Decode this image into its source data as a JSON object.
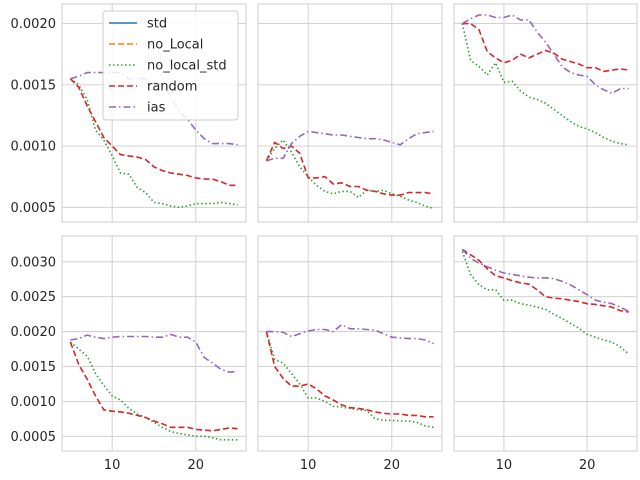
{
  "figure": {
    "layout": "2x3 grid of line charts, shared axes per row"
  },
  "legend": {
    "location": "upper-center of top-left panel",
    "entries": [
      {
        "label": "std",
        "color": "#1f77b4",
        "dash": "solid"
      },
      {
        "label": "no_Local",
        "color": "#ff7f0e",
        "dash": "dashed"
      },
      {
        "label": "no_local_std",
        "color": "#2ca02c",
        "dash": "dotted"
      },
      {
        "label": "random",
        "color": "#d62728",
        "dash": "dashed"
      },
      {
        "label": "ias",
        "color": "#9467bd",
        "dash": "dashdot"
      }
    ]
  },
  "axes": {
    "x": {
      "ticks": [
        10,
        20
      ],
      "tick_labels": [
        "10",
        "20"
      ],
      "range": [
        4.0,
        26.0
      ]
    },
    "rows": [
      {
        "range": [
          0.00038,
          0.00216
        ],
        "ticks": [
          0.0005,
          0.001,
          0.0015,
          0.002
        ],
        "tick_labels": [
          "0.0005",
          "0.0010",
          "0.0015",
          "0.0020"
        ]
      },
      {
        "range": [
          0.00029,
          0.00337
        ],
        "ticks": [
          0.0005,
          0.001,
          0.0015,
          0.002,
          0.0025,
          0.003
        ],
        "tick_labels": [
          "0.0005",
          "0.0010",
          "0.0015",
          "0.0020",
          "0.0025",
          "0.0030"
        ]
      }
    ],
    "grid": true
  },
  "chart_data": [
    {
      "type": "line",
      "row": 0,
      "col": 0,
      "series": [
        {
          "name": "no_local_std",
          "color": "#2ca02c",
          "dash": "dotted",
          "x": [
            5,
            6,
            7,
            8,
            9,
            10,
            11,
            12,
            13,
            14,
            15,
            16,
            17,
            18,
            19,
            20,
            21,
            22,
            23,
            24,
            25
          ],
          "y": [
            0.00155,
            0.0015,
            0.00138,
            0.00113,
            0.00105,
            0.00092,
            0.00078,
            0.00077,
            0.00066,
            0.00062,
            0.00054,
            0.00053,
            0.00051,
            0.0005,
            0.00051,
            0.00053,
            0.00053,
            0.00053,
            0.00054,
            0.00053,
            0.00052
          ]
        },
        {
          "name": "random",
          "color": "#d62728",
          "dash": "dashed",
          "x": [
            5,
            6,
            7,
            8,
            9,
            10,
            11,
            12,
            13,
            14,
            15,
            16,
            17,
            18,
            19,
            20,
            21,
            22,
            23,
            24,
            25
          ],
          "y": [
            0.00155,
            0.00148,
            0.00133,
            0.0012,
            0.00107,
            0.001,
            0.00093,
            0.00092,
            0.00091,
            0.00089,
            0.00083,
            0.0008,
            0.00078,
            0.00077,
            0.00076,
            0.00074,
            0.00073,
            0.00073,
            0.00071,
            0.00068,
            0.00068
          ]
        },
        {
          "name": "ias",
          "color": "#9467bd",
          "dash": "dashdot",
          "x": [
            5,
            6,
            7,
            8,
            9,
            10,
            11,
            12,
            13,
            14,
            15,
            16,
            17,
            18,
            19,
            20,
            21,
            22,
            23,
            24,
            25
          ],
          "y": [
            0.00155,
            0.00157,
            0.0016,
            0.0016,
            0.0016,
            0.0016,
            0.0016,
            0.00155,
            0.00155,
            0.00155,
            0.00152,
            0.0015,
            0.0014,
            0.00128,
            0.00122,
            0.00113,
            0.00106,
            0.00102,
            0.00102,
            0.00102,
            0.00101
          ]
        }
      ]
    },
    {
      "type": "line",
      "row": 0,
      "col": 1,
      "series": [
        {
          "name": "no_local_std",
          "color": "#2ca02c",
          "dash": "dotted",
          "x": [
            5,
            6,
            7,
            8,
            9,
            10,
            11,
            12,
            13,
            14,
            15,
            16,
            17,
            18,
            19,
            20,
            21,
            22,
            23,
            24,
            25
          ],
          "y": [
            0.00088,
            0.00098,
            0.00105,
            0.00095,
            0.00083,
            0.00075,
            0.00068,
            0.00063,
            0.00061,
            0.00063,
            0.00063,
            0.00058,
            0.00064,
            0.00063,
            0.00064,
            0.00061,
            0.00059,
            0.00056,
            0.00054,
            0.00051,
            0.00049
          ]
        },
        {
          "name": "random",
          "color": "#d62728",
          "dash": "dashed",
          "x": [
            5,
            6,
            7,
            8,
            9,
            10,
            11,
            12,
            13,
            14,
            15,
            16,
            17,
            18,
            19,
            20,
            21,
            22,
            23,
            24,
            25
          ],
          "y": [
            0.00088,
            0.00103,
            0.00098,
            0.001,
            0.00094,
            0.00074,
            0.00074,
            0.00075,
            0.00069,
            0.0007,
            0.00067,
            0.00067,
            0.00064,
            0.00063,
            0.00061,
            0.0006,
            0.0006,
            0.00062,
            0.00062,
            0.00062,
            0.00061
          ]
        },
        {
          "name": "ias",
          "color": "#9467bd",
          "dash": "dashdot",
          "x": [
            5,
            6,
            7,
            8,
            9,
            10,
            11,
            12,
            13,
            14,
            15,
            16,
            17,
            18,
            19,
            20,
            21,
            22,
            23,
            24,
            25
          ],
          "y": [
            0.00088,
            0.0009,
            0.0009,
            0.00102,
            0.00108,
            0.00112,
            0.00111,
            0.0011,
            0.00109,
            0.00109,
            0.00108,
            0.00107,
            0.00106,
            0.00106,
            0.00105,
            0.00103,
            0.00101,
            0.00106,
            0.0011,
            0.00111,
            0.00112
          ]
        }
      ]
    },
    {
      "type": "line",
      "row": 0,
      "col": 2,
      "series": [
        {
          "name": "no_local_std",
          "color": "#2ca02c",
          "dash": "dotted",
          "x": [
            5,
            6,
            7,
            8,
            9,
            10,
            11,
            12,
            13,
            14,
            15,
            16,
            17,
            18,
            19,
            20,
            21,
            22,
            23,
            24,
            25
          ],
          "y": [
            0.002,
            0.0017,
            0.00165,
            0.00158,
            0.00168,
            0.00152,
            0.00153,
            0.00145,
            0.0014,
            0.00138,
            0.00135,
            0.0013,
            0.00125,
            0.0012,
            0.00116,
            0.00114,
            0.00111,
            0.00107,
            0.00104,
            0.00102,
            0.00101
          ]
        },
        {
          "name": "random",
          "color": "#d62728",
          "dash": "dashed",
          "x": [
            5,
            6,
            7,
            8,
            9,
            10,
            11,
            12,
            13,
            14,
            15,
            16,
            17,
            18,
            19,
            20,
            21,
            22,
            23,
            24,
            25
          ],
          "y": [
            0.002,
            0.002,
            0.00195,
            0.00177,
            0.00172,
            0.00168,
            0.0017,
            0.00175,
            0.00172,
            0.00175,
            0.00178,
            0.00176,
            0.00171,
            0.00169,
            0.00167,
            0.00164,
            0.00164,
            0.00161,
            0.00162,
            0.00163,
            0.00162
          ]
        },
        {
          "name": "ias",
          "color": "#9467bd",
          "dash": "dashdot",
          "x": [
            5,
            6,
            7,
            8,
            9,
            10,
            11,
            12,
            13,
            14,
            15,
            16,
            17,
            18,
            19,
            20,
            21,
            22,
            23,
            24,
            25
          ],
          "y": [
            0.002,
            0.00204,
            0.00207,
            0.00207,
            0.00205,
            0.00205,
            0.00207,
            0.00203,
            0.00203,
            0.00193,
            0.00185,
            0.00175,
            0.00165,
            0.0016,
            0.00158,
            0.00157,
            0.0015,
            0.00146,
            0.00143,
            0.00147,
            0.00147
          ]
        }
      ]
    },
    {
      "type": "line",
      "row": 1,
      "col": 0,
      "series": [
        {
          "name": "no_local_std",
          "color": "#2ca02c",
          "dash": "dotted",
          "x": [
            5,
            6,
            7,
            8,
            9,
            10,
            11,
            12,
            13,
            14,
            15,
            16,
            17,
            18,
            19,
            20,
            21,
            22,
            23,
            24,
            25
          ],
          "y": [
            0.00185,
            0.00175,
            0.00165,
            0.0014,
            0.00123,
            0.00108,
            0.00102,
            0.0009,
            0.00082,
            0.00077,
            0.0007,
            0.00063,
            0.00057,
            0.00054,
            0.00052,
            0.0005,
            0.0005,
            0.00048,
            0.00045,
            0.00045,
            0.00045
          ]
        },
        {
          "name": "random",
          "color": "#d62728",
          "dash": "dashed",
          "x": [
            5,
            6,
            7,
            8,
            9,
            10,
            11,
            12,
            13,
            14,
            15,
            16,
            17,
            18,
            19,
            20,
            21,
            22,
            23,
            24,
            25
          ],
          "y": [
            0.00185,
            0.00153,
            0.00132,
            0.00108,
            0.00088,
            0.00086,
            0.00085,
            0.00083,
            0.0008,
            0.00077,
            0.00072,
            0.00068,
            0.00063,
            0.00063,
            0.00063,
            0.0006,
            0.00059,
            0.00058,
            0.0006,
            0.00062,
            0.00061
          ]
        },
        {
          "name": "ias",
          "color": "#9467bd",
          "dash": "dashdot",
          "x": [
            5,
            6,
            7,
            8,
            9,
            10,
            11,
            12,
            13,
            14,
            15,
            16,
            17,
            18,
            19,
            20,
            21,
            22,
            23,
            24,
            25
          ],
          "y": [
            0.00188,
            0.0019,
            0.00195,
            0.00192,
            0.0019,
            0.00192,
            0.00193,
            0.00193,
            0.00193,
            0.00193,
            0.00192,
            0.00192,
            0.00196,
            0.00192,
            0.00192,
            0.00185,
            0.00163,
            0.00155,
            0.00146,
            0.00142,
            0.00143
          ]
        }
      ]
    },
    {
      "type": "line",
      "row": 1,
      "col": 1,
      "series": [
        {
          "name": "no_local_std",
          "color": "#2ca02c",
          "dash": "dotted",
          "x": [
            5,
            6,
            7,
            8,
            9,
            10,
            11,
            12,
            13,
            14,
            15,
            16,
            17,
            18,
            19,
            20,
            21,
            22,
            23,
            24,
            25
          ],
          "y": [
            0.002,
            0.0016,
            0.00155,
            0.0014,
            0.00125,
            0.00105,
            0.00105,
            0.001,
            0.00093,
            0.00092,
            0.0009,
            0.00088,
            0.00087,
            0.00075,
            0.00073,
            0.00073,
            0.00072,
            0.00072,
            0.0007,
            0.00065,
            0.00063
          ]
        },
        {
          "name": "random",
          "color": "#d62728",
          "dash": "dashed",
          "x": [
            5,
            6,
            7,
            8,
            9,
            10,
            11,
            12,
            13,
            14,
            15,
            16,
            17,
            18,
            19,
            20,
            21,
            22,
            23,
            24,
            25
          ],
          "y": [
            0.002,
            0.0015,
            0.00133,
            0.00122,
            0.00122,
            0.00125,
            0.00118,
            0.00108,
            0.00102,
            0.00095,
            0.00091,
            0.0009,
            0.00088,
            0.00085,
            0.00083,
            0.00082,
            0.00082,
            0.0008,
            0.0008,
            0.00078,
            0.00078
          ]
        },
        {
          "name": "ias",
          "color": "#9467bd",
          "dash": "dashdot",
          "x": [
            5,
            6,
            7,
            8,
            9,
            10,
            11,
            12,
            13,
            14,
            15,
            16,
            17,
            18,
            19,
            20,
            21,
            22,
            23,
            24,
            25
          ],
          "y": [
            0.002,
            0.002,
            0.00199,
            0.00193,
            0.00197,
            0.00201,
            0.00203,
            0.00203,
            0.002,
            0.0021,
            0.00204,
            0.00204,
            0.00203,
            0.00202,
            0.00197,
            0.00192,
            0.00191,
            0.0019,
            0.0019,
            0.00188,
            0.00183
          ]
        }
      ]
    },
    {
      "type": "line",
      "row": 1,
      "col": 2,
      "series": [
        {
          "name": "no_local_std",
          "color": "#2ca02c",
          "dash": "dotted",
          "x": [
            5,
            6,
            7,
            8,
            9,
            10,
            11,
            12,
            13,
            14,
            15,
            16,
            17,
            18,
            19,
            20,
            21,
            22,
            23,
            24,
            25
          ],
          "y": [
            0.00315,
            0.00282,
            0.00267,
            0.0026,
            0.0026,
            0.00245,
            0.00245,
            0.0024,
            0.00238,
            0.00235,
            0.00232,
            0.00225,
            0.00219,
            0.00212,
            0.00205,
            0.00196,
            0.00192,
            0.00188,
            0.00185,
            0.00178,
            0.00168
          ]
        },
        {
          "name": "random",
          "color": "#d62728",
          "dash": "dashed",
          "x": [
            5,
            6,
            7,
            8,
            9,
            10,
            11,
            12,
            13,
            14,
            15,
            16,
            17,
            18,
            19,
            20,
            21,
            22,
            23,
            24,
            25
          ],
          "y": [
            0.00318,
            0.0031,
            0.00302,
            0.0029,
            0.0028,
            0.00277,
            0.00273,
            0.0027,
            0.00268,
            0.0026,
            0.0025,
            0.00248,
            0.00247,
            0.00245,
            0.00243,
            0.0024,
            0.00239,
            0.00237,
            0.00235,
            0.0023,
            0.00228
          ]
        },
        {
          "name": "ias",
          "color": "#9467bd",
          "dash": "dashdot",
          "x": [
            5,
            6,
            7,
            8,
            9,
            10,
            11,
            12,
            13,
            14,
            15,
            16,
            17,
            18,
            19,
            20,
            21,
            22,
            23,
            24,
            25
          ],
          "y": [
            0.00318,
            0.00305,
            0.00298,
            0.00293,
            0.00288,
            0.00284,
            0.00282,
            0.0028,
            0.00278,
            0.00277,
            0.00277,
            0.00276,
            0.00272,
            0.00267,
            0.0026,
            0.00253,
            0.00245,
            0.00242,
            0.0024,
            0.00235,
            0.00229
          ]
        }
      ]
    }
  ]
}
